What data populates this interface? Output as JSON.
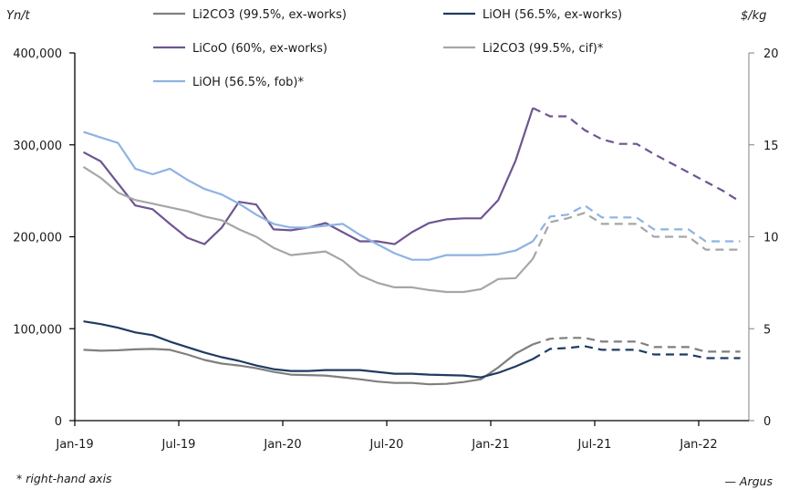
{
  "chart_data": {
    "type": "line",
    "title": "",
    "left_axis": {
      "unit": "Yn/t",
      "ylim": [
        0,
        400000
      ],
      "ticks": [
        0,
        100000,
        200000,
        300000,
        400000
      ],
      "tick_labels": [
        "0",
        "100,000",
        "200,000",
        "300,000",
        "400,000"
      ]
    },
    "right_axis": {
      "unit": "$/kg",
      "ylim": [
        0,
        20
      ],
      "ticks": [
        0,
        5,
        10,
        15,
        20
      ],
      "tick_labels": [
        "0",
        "5",
        "10",
        "15",
        "20"
      ]
    },
    "x_tick_labels": [
      "Jan-19",
      "Jul-19",
      "Jan-20",
      "Jul-20",
      "Jan-21",
      "Jul-21",
      "Jan-22"
    ],
    "x": [
      "Jan-19",
      "Feb-19",
      "Mar-19",
      "Apr-19",
      "May-19",
      "Jun-19",
      "Jul-19",
      "Aug-19",
      "Sep-19",
      "Oct-19",
      "Nov-19",
      "Dec-19",
      "Jan-20",
      "Feb-20",
      "Mar-20",
      "Apr-20",
      "May-20",
      "Jun-20",
      "Jul-20",
      "Aug-20",
      "Sep-20",
      "Oct-20",
      "Nov-20",
      "Dec-20",
      "Jan-21",
      "Feb-21",
      "Mar-21",
      "Apr-21",
      "May-21",
      "Jun-21",
      "Jul-21",
      "Aug-21",
      "Sep-21",
      "Oct-21",
      "Nov-21",
      "Dec-21",
      "Jan-22",
      "Feb-22",
      "Mar-22"
    ],
    "forecast_start_index": 26,
    "grid": false,
    "legend_placement": "top",
    "series": [
      {
        "name": "Li2CO3 (99.5%, ex-works)",
        "axis": "left",
        "color": "#7f7f7f",
        "values": [
          77000,
          76000,
          76500,
          77500,
          78000,
          77000,
          72000,
          66000,
          62000,
          60000,
          57000,
          53000,
          50000,
          49500,
          49000,
          47000,
          45000,
          42500,
          41000,
          41000,
          39500,
          40000,
          42000,
          45000,
          58000,
          73000,
          83000,
          89000,
          90000,
          90000,
          86000,
          86000,
          86000,
          80000,
          80000,
          80000,
          75000,
          75000,
          75000
        ]
      },
      {
        "name": "LiOH (56.5%, ex-works)",
        "axis": "left",
        "color": "#1f3b63",
        "values": [
          108000,
          105000,
          101000,
          96000,
          93000,
          86000,
          80000,
          74000,
          69000,
          65000,
          60000,
          56000,
          54000,
          54000,
          55000,
          55000,
          55000,
          53000,
          51000,
          51000,
          50000,
          49500,
          49000,
          47000,
          52000,
          59000,
          67000,
          78000,
          79000,
          81000,
          77000,
          77000,
          77000,
          72000,
          72000,
          72000,
          68000,
          68000,
          68000
        ]
      },
      {
        "name": "LiCoO (60%, ex-works)",
        "axis": "left",
        "color": "#6f5591",
        "values": [
          292000,
          282000,
          258000,
          234000,
          230000,
          214000,
          199000,
          192000,
          210000,
          238000,
          235000,
          208000,
          207000,
          210000,
          215000,
          205000,
          195000,
          195000,
          192000,
          205000,
          215000,
          219000,
          220000,
          220000,
          240000,
          283000,
          340000,
          331000,
          331000,
          316000,
          306000,
          301000,
          301000,
          290000,
          280000,
          270000,
          260000,
          250000,
          238000
        ]
      },
      {
        "name": "Li2CO3 (99.5%, cif)*",
        "axis": "right",
        "color": "#a6a6a6",
        "values": [
          13.8,
          13.2,
          12.4,
          12.0,
          11.8,
          11.6,
          11.4,
          11.1,
          10.9,
          10.4,
          10.0,
          9.4,
          9.0,
          9.1,
          9.2,
          8.7,
          7.9,
          7.5,
          7.25,
          7.25,
          7.1,
          7.0,
          7.0,
          7.15,
          7.7,
          7.75,
          8.8,
          10.8,
          11.0,
          11.3,
          10.7,
          10.7,
          10.7,
          10.0,
          10.0,
          10.0,
          9.3,
          9.3,
          9.3
        ]
      },
      {
        "name": "LiOH (56.5%, fob)*",
        "axis": "right",
        "color": "#8db3e2",
        "values": [
          15.7,
          15.4,
          15.1,
          13.7,
          13.4,
          13.7,
          13.1,
          12.6,
          12.3,
          11.8,
          11.2,
          10.7,
          10.5,
          10.5,
          10.6,
          10.7,
          10.1,
          9.6,
          9.1,
          8.75,
          8.75,
          9.0,
          9.0,
          9.0,
          9.05,
          9.25,
          9.75,
          11.1,
          11.2,
          11.7,
          11.05,
          11.05,
          11.05,
          10.4,
          10.4,
          10.4,
          9.75,
          9.75,
          9.75
        ]
      }
    ],
    "annotations": [
      "* right-hand axis",
      "— Argus"
    ]
  },
  "legend": {
    "items": [
      {
        "label": "Li2CO3 (99.5%, ex-works)",
        "color": "#7f7f7f"
      },
      {
        "label": "LiOH (56.5%, ex-works)",
        "color": "#1f3b63"
      },
      {
        "label": "LiCoO (60%, ex-works)",
        "color": "#6f5591"
      },
      {
        "label": "Li2CO3 (99.5%, cif)*",
        "color": "#a6a6a6"
      },
      {
        "label": "LiOH (56.5%, fob)*",
        "color": "#8db3e2"
      }
    ]
  },
  "labels": {
    "left_unit": "Yn/t",
    "right_unit": "$/kg",
    "footnote": "* right-hand axis",
    "source": "— Argus"
  }
}
